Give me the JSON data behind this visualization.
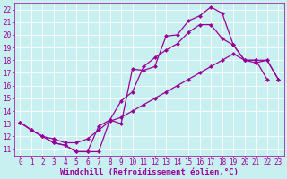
{
  "xlabel": "Windchill (Refroidissement éolien,°C)",
  "bg_color": "#c8f0f0",
  "line_color": "#990099",
  "grid_color": "#ffffff",
  "xlim": [
    -0.5,
    23.5
  ],
  "ylim": [
    10.5,
    22.5
  ],
  "xticks": [
    0,
    1,
    2,
    3,
    4,
    5,
    6,
    7,
    8,
    9,
    10,
    11,
    12,
    13,
    14,
    15,
    16,
    17,
    18,
    19,
    20,
    21,
    22,
    23
  ],
  "yticks": [
    11,
    12,
    13,
    14,
    15,
    16,
    17,
    18,
    19,
    20,
    21,
    22
  ],
  "line1_x": [
    0,
    1,
    2,
    3,
    4,
    5,
    6,
    7,
    8,
    9,
    10,
    11,
    12,
    13,
    14,
    15,
    16,
    17,
    18,
    19,
    20,
    21,
    22
  ],
  "line1_y": [
    13.1,
    12.5,
    12.0,
    11.5,
    11.3,
    10.8,
    10.8,
    10.8,
    13.3,
    13.0,
    17.3,
    17.2,
    17.5,
    19.9,
    20.0,
    21.1,
    21.5,
    22.2,
    21.7,
    19.2,
    18.0,
    18.0,
    16.5
  ],
  "line2_x": [
    0,
    1,
    2,
    3,
    4,
    5,
    6,
    7,
    8,
    9,
    10,
    11,
    12,
    13,
    14,
    15,
    16,
    17,
    18,
    19,
    20,
    21,
    22,
    23
  ],
  "line2_y": [
    13.1,
    12.5,
    12.0,
    11.5,
    11.3,
    10.8,
    10.8,
    12.8,
    13.3,
    14.8,
    15.5,
    17.5,
    18.2,
    18.8,
    19.3,
    20.2,
    20.8,
    20.8,
    19.7,
    19.2,
    18.0,
    18.0,
    18.0,
    16.5
  ],
  "line3_x": [
    0,
    1,
    2,
    3,
    4,
    5,
    6,
    7,
    8,
    9,
    10,
    11,
    12,
    13,
    14,
    15,
    16,
    17,
    18,
    19,
    20,
    21,
    22,
    23
  ],
  "line3_y": [
    13.1,
    12.5,
    12.0,
    11.8,
    11.5,
    11.5,
    11.8,
    12.5,
    13.2,
    13.5,
    14.0,
    14.5,
    15.0,
    15.5,
    16.0,
    16.5,
    17.0,
    17.5,
    18.0,
    18.5,
    18.0,
    17.8,
    18.0,
    16.5
  ],
  "tick_fontsize": 5.5,
  "xlabel_fontsize": 6.5,
  "markersize": 2.5,
  "linewidth": 0.9
}
